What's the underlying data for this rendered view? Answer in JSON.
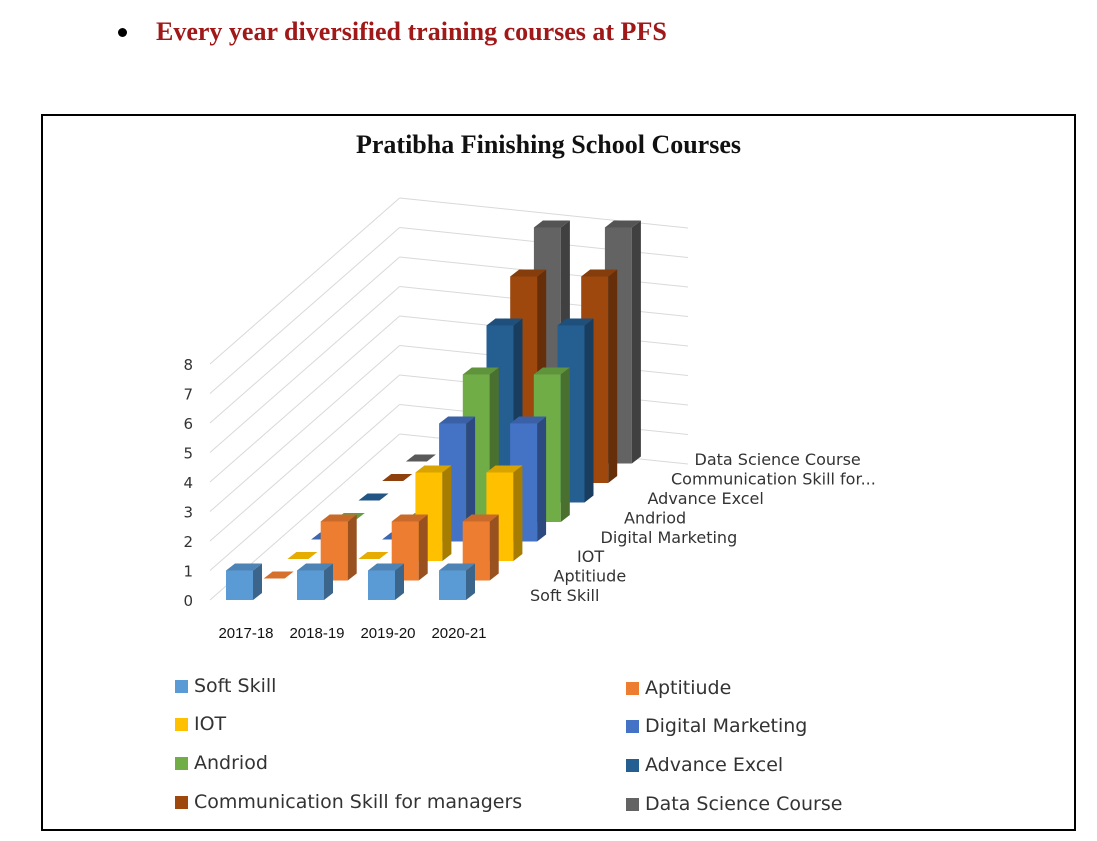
{
  "header": {
    "bullet_text": "Every year diversified training courses at PFS"
  },
  "chart_data": {
    "type": "bar",
    "style": "3d-column",
    "title": "Pratibha Finishing School Courses",
    "categories": [
      "2017-18",
      "2018-19",
      "2019-20",
      "2020-21"
    ],
    "y_ticks": [
      "0",
      "1",
      "2",
      "3",
      "4",
      "5",
      "6",
      "7",
      "8"
    ],
    "ylim": [
      0,
      8
    ],
    "grid": true,
    "legend_position": "bottom",
    "series": [
      {
        "name": "Soft Skill",
        "color": "#5b9bd5",
        "values": [
          1,
          1,
          1,
          1
        ]
      },
      {
        "name": "Aptitiude",
        "color": "#ed7d31",
        "values": [
          0,
          2,
          2,
          2
        ]
      },
      {
        "name": "IOT",
        "color": "#ffc000",
        "values": [
          0,
          0,
          3,
          3
        ]
      },
      {
        "name": "Digital Marketing",
        "color": "#4472c4",
        "values": [
          0,
          0,
          4,
          4
        ]
      },
      {
        "name": "Andriod",
        "color": "#70ad47",
        "values": [
          0,
          0,
          5,
          5
        ]
      },
      {
        "name": "Advance Excel",
        "color": "#255e91",
        "values": [
          0,
          0,
          6,
          6
        ]
      },
      {
        "name": "Communication Skill for managers",
        "color": "#9e480e",
        "values": [
          0,
          0,
          7,
          7
        ]
      },
      {
        "name": "Data Science Course",
        "color": "#636363",
        "values": [
          0,
          0,
          8,
          8
        ]
      }
    ],
    "depth_labels": [
      "Soft Skill",
      "Aptitiude",
      "IOT",
      "Digital Marketing",
      "Andriod",
      "Advance Excel",
      "Communication Skill for...",
      "Data Science Course"
    ]
  }
}
